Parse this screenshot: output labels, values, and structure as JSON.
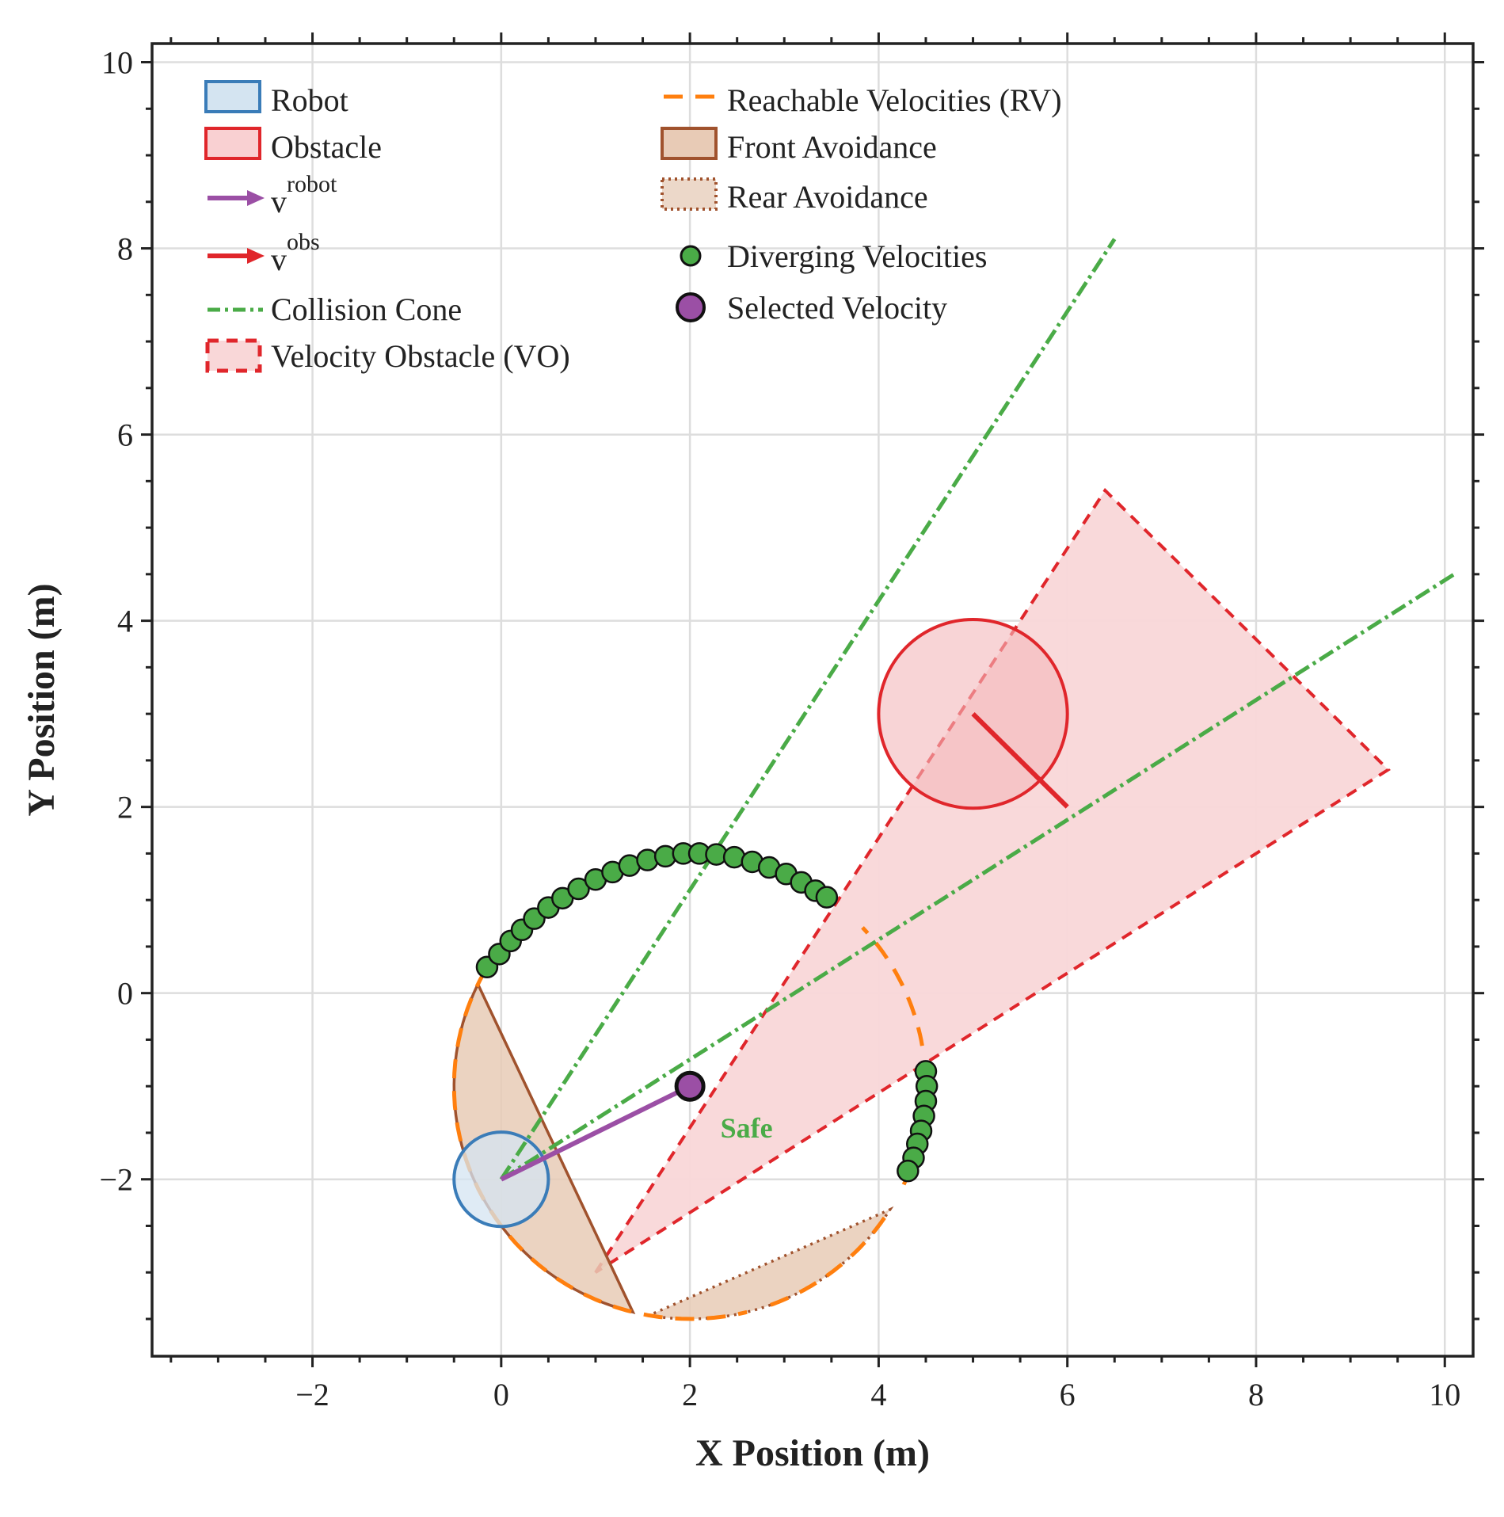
{
  "chart_data": {
    "type": "scatter",
    "xlabel": "X Position (m)",
    "ylabel": "Y Position (m)",
    "xlim": [
      -3.7,
      10.3
    ],
    "ylim": [
      -3.9,
      10.2
    ],
    "xticks": [
      -2,
      0,
      2,
      4,
      6,
      8,
      10
    ],
    "yticks": [
      -2,
      0,
      2,
      4,
      6,
      8,
      10
    ],
    "x_tick_labels": [
      "−2",
      "0",
      "2",
      "4",
      "6",
      "8",
      "10"
    ],
    "y_tick_labels": [
      "−2",
      "0",
      "2",
      "4",
      "6",
      "8",
      "10"
    ],
    "minor_step": 0.5,
    "grid": true,
    "colors": {
      "robot": "#3a7cb8",
      "robot_fill": "#d4e4f1",
      "obstacle": "#e0262b",
      "obstacle_fill": "#f4b8bb",
      "vo_fill": "#f9d7d8",
      "v_robot": "#9b4fa5",
      "cone": "#4aab47",
      "reachable": "#ff7f0e",
      "avoid": "#a0522d",
      "avoid_fill": "#e8cbb6",
      "selected": "#9b4fa5",
      "diverging": "#4aab47"
    },
    "robot": {
      "center": [
        0,
        -2
      ],
      "radius": 0.5
    },
    "obstacle": {
      "center": [
        5,
        3
      ],
      "radius": 1.0
    },
    "v_robot": {
      "from": [
        0,
        -2
      ],
      "to": [
        2,
        -1
      ]
    },
    "v_obs": {
      "from": [
        5,
        3
      ],
      "to": [
        6,
        2
      ]
    },
    "collision_cone": {
      "apex": [
        0,
        -2
      ],
      "edge1_end": [
        6.5,
        8.1
      ],
      "edge2_end": [
        10.1,
        4.5
      ]
    },
    "velocity_obstacle": {
      "polygon": [
        [
          1.0,
          -3.0
        ],
        [
          6.4,
          5.4
        ],
        [
          9.4,
          2.4
        ]
      ]
    },
    "reachable_velocities": {
      "center": [
        2,
        -1
      ],
      "radius": 2.5,
      "visible_arcs_deg": [
        [
          150,
          284
        ],
        [
          290,
          327
        ],
        [
          335,
          350
        ],
        [
          370,
          403
        ]
      ]
    },
    "front_avoidance": {
      "polygon_arc_deg": [
        154,
        256
      ],
      "center": [
        2,
        -1
      ],
      "radius": 2.5
    },
    "rear_avoidance": {
      "polygon_arc_deg": [
        260,
        328
      ],
      "center": [
        2,
        -1
      ],
      "radius": 2.5
    },
    "diverging_velocities": [
      [
        -0.15,
        0.28
      ],
      [
        -0.02,
        0.42
      ],
      [
        0.1,
        0.56
      ],
      [
        0.22,
        0.68
      ],
      [
        0.35,
        0.8
      ],
      [
        0.5,
        0.92
      ],
      [
        0.65,
        1.02
      ],
      [
        0.82,
        1.12
      ],
      [
        1.0,
        1.22
      ],
      [
        1.18,
        1.3
      ],
      [
        1.36,
        1.37
      ],
      [
        1.55,
        1.43
      ],
      [
        1.74,
        1.47
      ],
      [
        1.93,
        1.5
      ],
      [
        2.1,
        1.5
      ],
      [
        2.28,
        1.49
      ],
      [
        2.47,
        1.46
      ],
      [
        2.66,
        1.41
      ],
      [
        2.84,
        1.35
      ],
      [
        3.02,
        1.28
      ],
      [
        3.18,
        1.19
      ],
      [
        3.33,
        1.1
      ],
      [
        3.45,
        1.03
      ],
      [
        4.5,
        -0.84
      ],
      [
        4.51,
        -1.0
      ],
      [
        4.5,
        -1.16
      ],
      [
        4.48,
        -1.32
      ],
      [
        4.45,
        -1.48
      ],
      [
        4.41,
        -1.62
      ],
      [
        4.37,
        -1.77
      ],
      [
        4.31,
        -1.91
      ]
    ],
    "selected_velocity": [
      2.0,
      -1.0
    ],
    "annotations": [
      {
        "text": "Safe",
        "x": 2.6,
        "y": -1.55
      }
    ],
    "legend": {
      "position": "top-left",
      "entries": {
        "robot": "Robot",
        "obstacle": "Obstacle",
        "v_robot": "v",
        "v_robot_sup": "robot",
        "v_obs": "v",
        "v_obs_sup": "obs",
        "cone": "Collision Cone",
        "vo": "Velocity Obstacle (VO)",
        "rv": "Reachable Velocities (RV)",
        "front": "Front Avoidance",
        "rear": "Rear Avoidance",
        "diverging": "Diverging Velocities",
        "selected": "Selected Velocity"
      }
    }
  }
}
